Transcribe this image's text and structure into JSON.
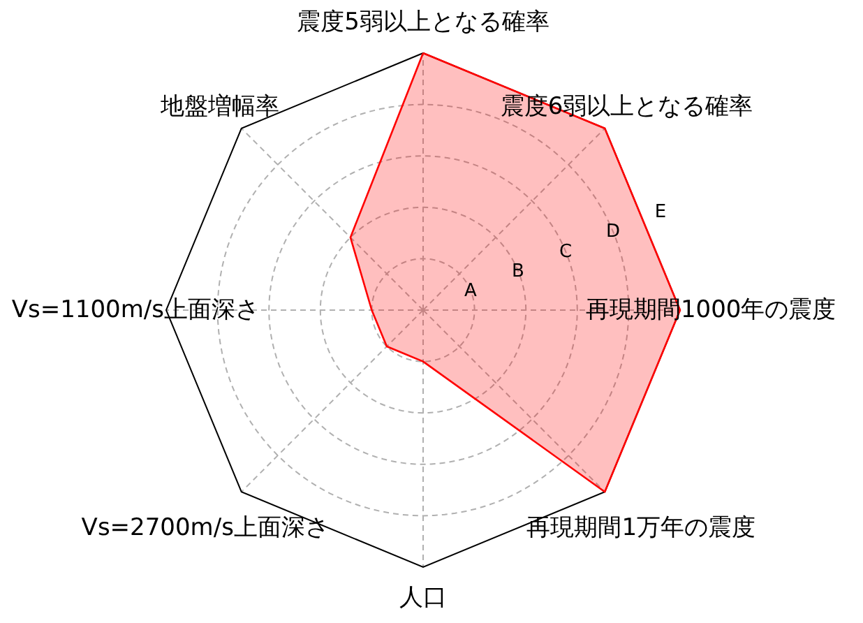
{
  "chart_data": {
    "type": "radar",
    "categories": [
      "震度5弱以上となる確率",
      "震度6弱以上となる確率",
      "再現期間1000年の震度",
      "再現期間1万年の震度",
      "人口",
      "Vs=2700m/s上面深さ",
      "Vs=1100m/s上面深さ",
      "地盤増幅率"
    ],
    "series": [
      {
        "color": "#ff0000",
        "values": [
          5,
          5,
          5,
          5,
          1,
          1,
          1,
          2
        ]
      }
    ],
    "ylim": [
      0,
      5
    ],
    "yticks": [
      {
        "value": 1,
        "label": "A"
      },
      {
        "value": 2,
        "label": "B"
      },
      {
        "value": 3,
        "label": "C"
      },
      {
        "value": 4,
        "label": "D"
      },
      {
        "value": 5,
        "label": "E"
      }
    ],
    "grid": true
  }
}
